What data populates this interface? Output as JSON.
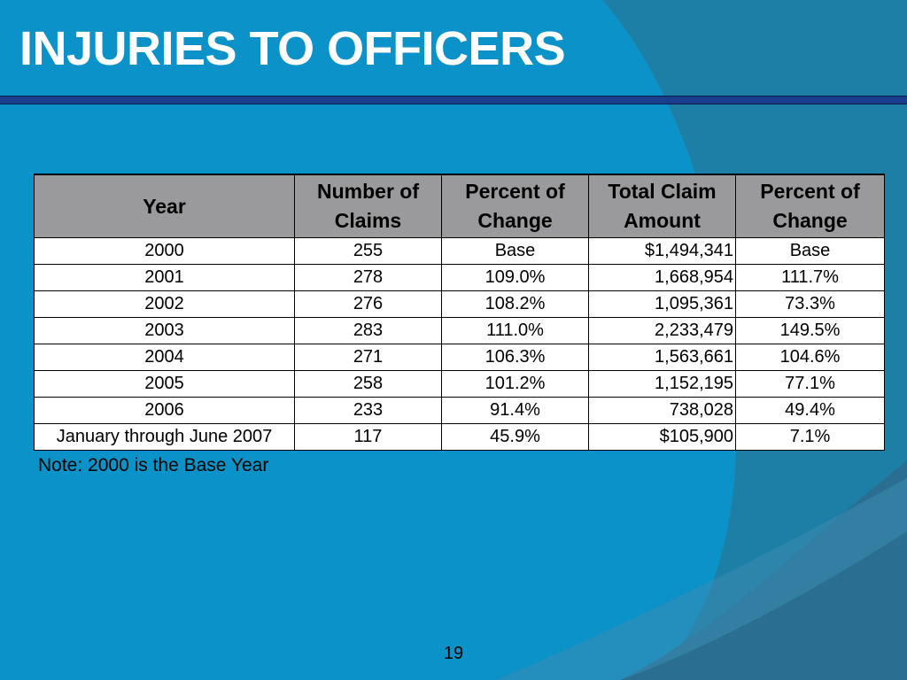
{
  "slide": {
    "title": "INJURIES TO OFFICERS",
    "note": "Note:  2000 is the Base Year",
    "page_number": "19",
    "colors": {
      "background": "#0b93c9",
      "header_fill": "#9a9a9c",
      "rule": "#1a3d8c"
    }
  },
  "table": {
    "headers": {
      "year": "Year",
      "claims_line1": "Number of",
      "claims_line2": "Claims",
      "pct1_line1": "Percent of",
      "pct1_line2": "Change",
      "amount_line1": "Total Claim",
      "amount_line2": "Amount",
      "pct2_line1": "Percent of",
      "pct2_line2": "Change"
    },
    "rows": [
      {
        "year": "2000",
        "claims": "255",
        "pct_claims": "Base",
        "amount": "$1,494,341",
        "pct_amount": "Base"
      },
      {
        "year": "2001",
        "claims": "278",
        "pct_claims": "109.0%",
        "amount": "1,668,954",
        "pct_amount": "111.7%"
      },
      {
        "year": "2002",
        "claims": "276",
        "pct_claims": "108.2%",
        "amount": "1,095,361",
        "pct_amount": "73.3%"
      },
      {
        "year": "2003",
        "claims": "283",
        "pct_claims": "111.0%",
        "amount": "2,233,479",
        "pct_amount": "149.5%"
      },
      {
        "year": "2004",
        "claims": "271",
        "pct_claims": "106.3%",
        "amount": "1,563,661",
        "pct_amount": "104.6%"
      },
      {
        "year": "2005",
        "claims": "258",
        "pct_claims": "101.2%",
        "amount": "1,152,195",
        "pct_amount": "77.1%"
      },
      {
        "year": "2006",
        "claims": "233",
        "pct_claims": "91.4%",
        "amount": "738,028",
        "pct_amount": "49.4%"
      },
      {
        "year": "January through June 2007",
        "claims": "117",
        "pct_claims": "45.9%",
        "amount": "$105,900",
        "pct_amount": "7.1%"
      }
    ]
  }
}
